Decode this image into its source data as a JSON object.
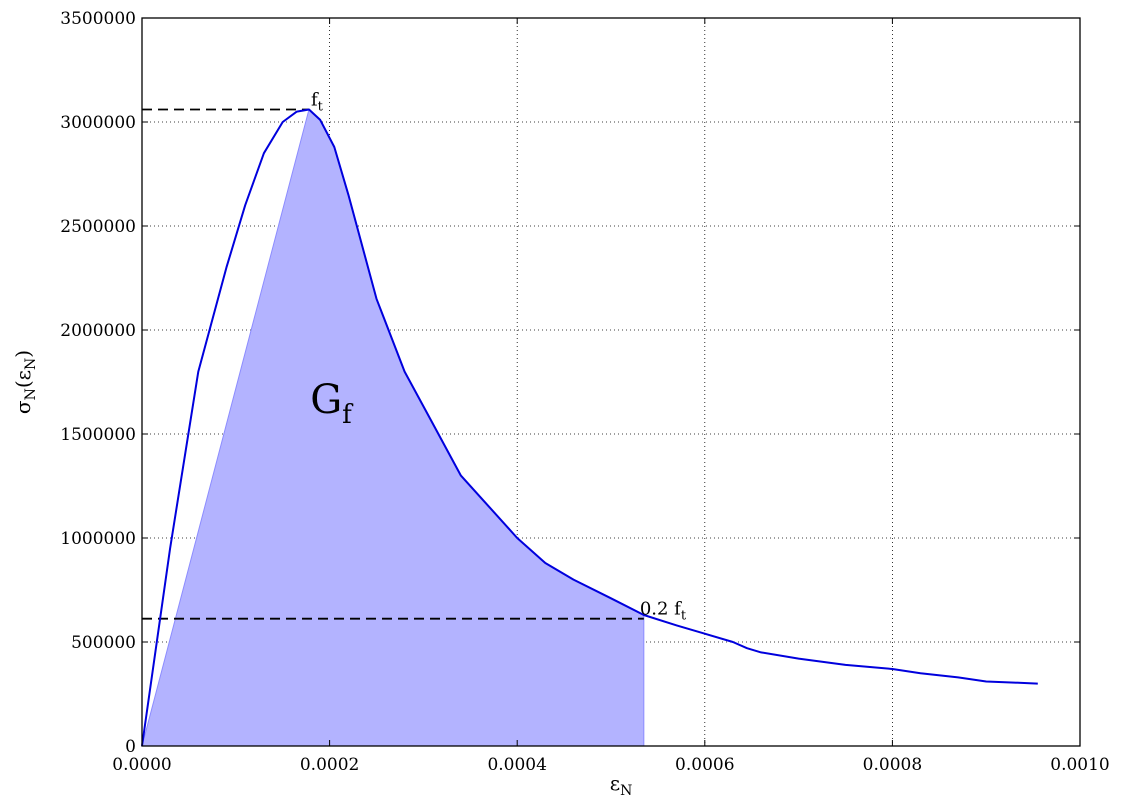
{
  "chart_data": {
    "type": "line",
    "title": "",
    "xlabel": "ε_N",
    "ylabel": "σ_N(ε_N)",
    "xlim": [
      0.0,
      0.001
    ],
    "ylim": [
      0,
      3500000
    ],
    "grid": true,
    "x_ticks": [
      0.0,
      0.0002,
      0.0004,
      0.0006,
      0.0008,
      0.001
    ],
    "x_tick_labels": [
      "0.0000",
      "0.0002",
      "0.0004",
      "0.0006",
      "0.0008",
      "0.0010"
    ],
    "y_ticks": [
      0,
      500000,
      1000000,
      1500000,
      2000000,
      2500000,
      3000000,
      3500000
    ],
    "y_tick_labels": [
      "0",
      "500000",
      "1000000",
      "1500000",
      "2000000",
      "2500000",
      "3000000",
      "3500000"
    ],
    "series": [
      {
        "color": "#0000dd",
        "x": [
          0.0,
          3e-05,
          6e-05,
          9e-05,
          0.00011,
          0.00013,
          0.00015,
          0.000165,
          0.000178,
          0.00019,
          0.000205,
          0.00022,
          0.00025,
          0.00028,
          0.00031,
          0.00034,
          0.00037,
          0.0004,
          0.00043,
          0.00046,
          0.0005,
          0.000535,
          0.00057,
          0.0006,
          0.00063,
          0.000645,
          0.00066,
          0.0007,
          0.00075,
          0.0008,
          0.00083,
          0.00087,
          0.0009,
          0.00093,
          0.000955
        ],
        "y": [
          0,
          950000,
          1800000,
          2300000,
          2600000,
          2850000,
          3000000,
          3050000,
          3060000,
          3010000,
          2880000,
          2650000,
          2150000,
          1800000,
          1550000,
          1300000,
          1150000,
          1000000,
          880000,
          800000,
          710000,
          630000,
          580000,
          540000,
          500000,
          470000,
          450000,
          420000,
          390000,
          370000,
          350000,
          330000,
          310000,
          305000,
          300000
        ]
      }
    ],
    "shaded_region": {
      "color": "#b3b3ff",
      "x": [
        0.0,
        0.000178,
        0.00019,
        0.000205,
        0.00022,
        0.00025,
        0.00028,
        0.00031,
        0.00034,
        0.00037,
        0.0004,
        0.00043,
        0.00046,
        0.0005,
        0.000535,
        0.000535
      ],
      "y": [
        0,
        3060000,
        3010000,
        2880000,
        2650000,
        2150000,
        1800000,
        1550000,
        1300000,
        1150000,
        1000000,
        880000,
        800000,
        710000,
        630000,
        0
      ]
    },
    "reference_lines": [
      {
        "x": [
          0.0,
          0.000178
        ],
        "y": [
          3060000,
          3060000
        ]
      },
      {
        "x": [
          0.0,
          0.000535
        ],
        "y": [
          612000,
          612000
        ]
      }
    ],
    "annotations": [
      {
        "text": "f_t",
        "x": 0.000178,
        "y": 3060000
      },
      {
        "text": "0.2 f_t",
        "x": 0.000535,
        "y": 612000
      },
      {
        "text": "G_f",
        "x": 0.00019,
        "y": 1600000
      }
    ]
  }
}
